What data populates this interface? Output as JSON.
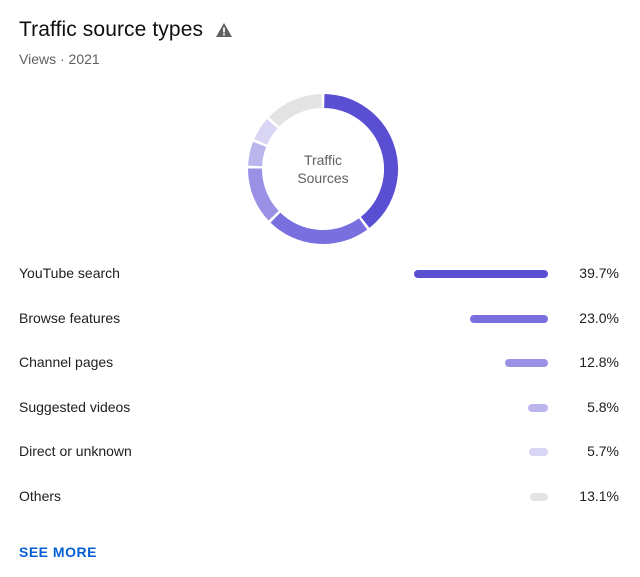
{
  "header": {
    "title": "Traffic source types",
    "warning_icon": "warning-triangle-icon",
    "subtitle": "Views · 2021"
  },
  "donut": {
    "center_line1": "Traffic",
    "center_line2": "Sources"
  },
  "sources": [
    {
      "label": "YouTube search",
      "value": "39.7%",
      "share": 39.7,
      "color": "#5a4fd3"
    },
    {
      "label": "Browse features",
      "value": "23.0%",
      "share": 23.0,
      "color": "#7a6fde"
    },
    {
      "label": "Channel pages",
      "value": "12.8%",
      "share": 12.8,
      "color": "#9a90e6"
    },
    {
      "label": "Suggested videos",
      "value": "5.8%",
      "share": 5.8,
      "color": "#bbb5ee"
    },
    {
      "label": "Direct or unknown",
      "value": "5.7%",
      "share": 5.7,
      "color": "#d8d5f5"
    },
    {
      "label": "Others",
      "value": "13.1%",
      "share": 13.1,
      "color": "#e3e3e3"
    }
  ],
  "see_more_label": "SEE MORE"
}
